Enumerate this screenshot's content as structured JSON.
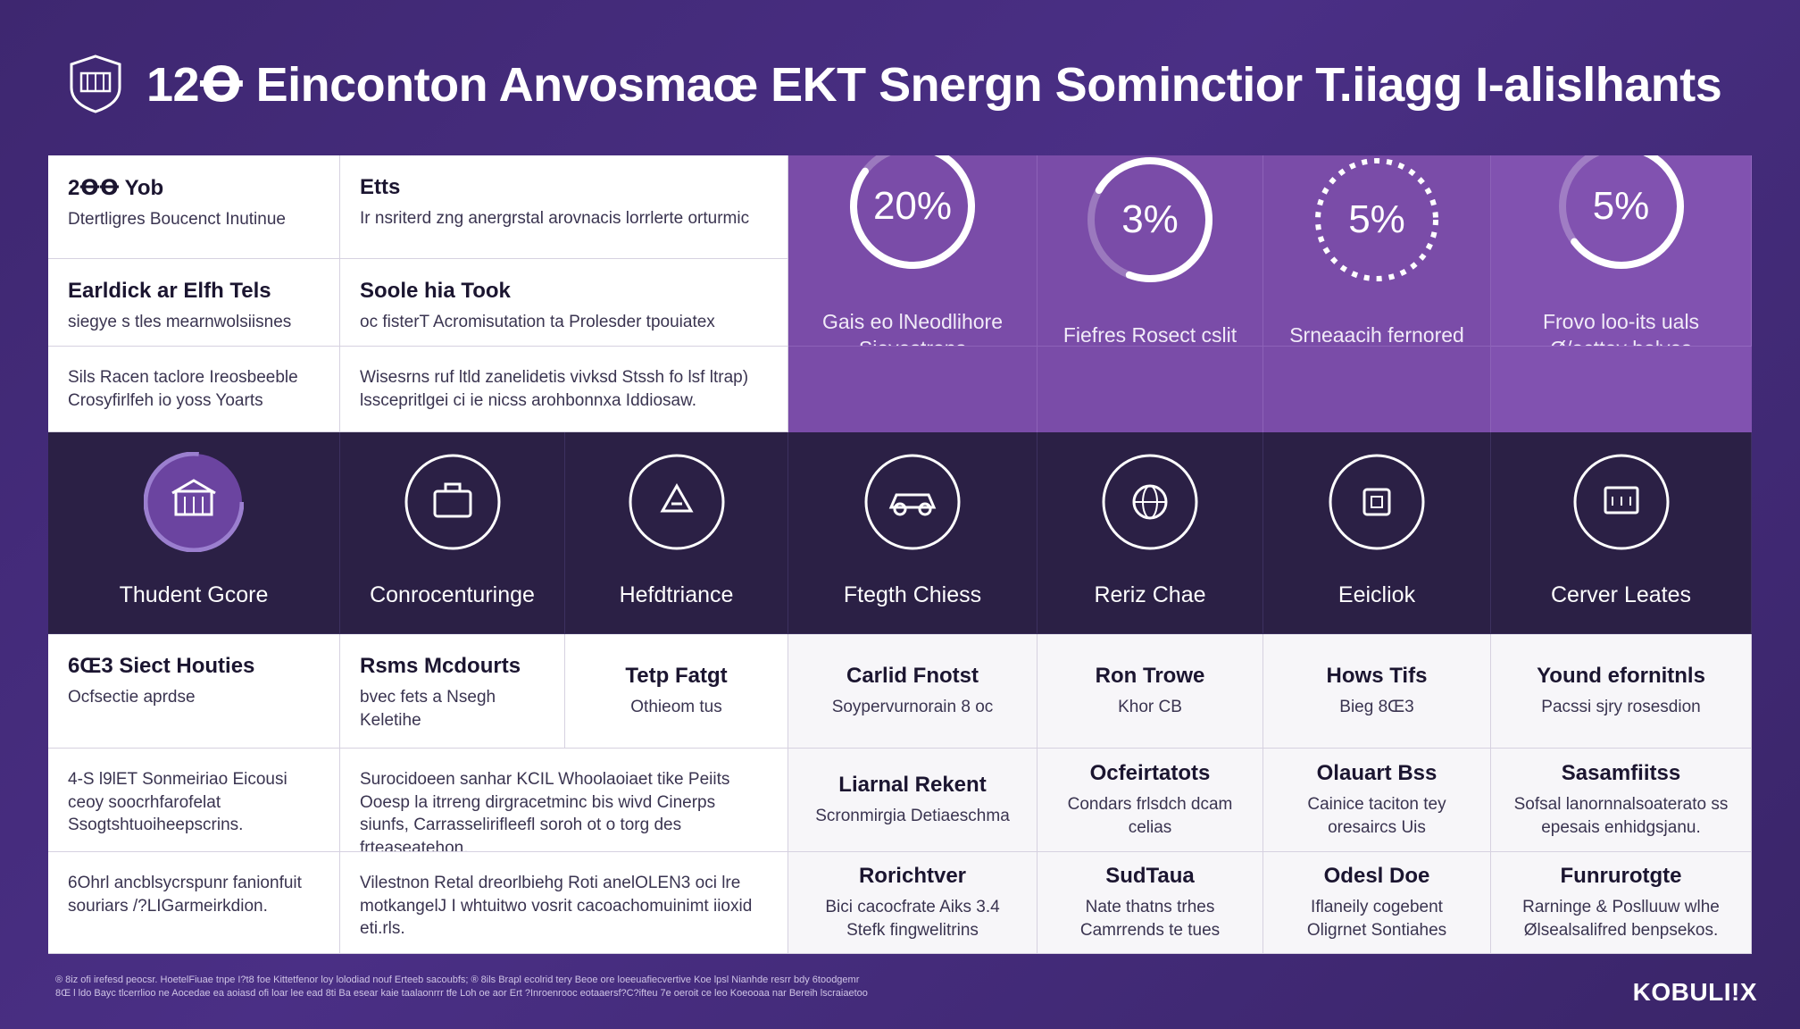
{
  "header": {
    "title": "12Ꝋ Einconton Anvosmaœ EKT Snergn Sominctior T.iiagg I-alislhants",
    "logo_icon": "shield-icon"
  },
  "row1": {
    "c1_title": "2ꝊꝊ Yob",
    "c1_body": "Dtertligres Boucenct Inutinue",
    "c2_title": "Etts",
    "c2_body": "Ir nsriterd zng anergrstal arovnacis lorrlerte orturmic"
  },
  "row2": {
    "c1_title": "Earldick ar Elfh Tels",
    "c1_body": "siegye s tles mearnwolsiisnes",
    "c2_title": "Soole hia Took",
    "c2_body": "oc fisterT Acromisutation ta Prolesder tpouiatex"
  },
  "row3": {
    "c1_body": "Sils Racen taclore Ireosbeeble Crosyfirlfeh io yoss Yoarts",
    "c2_body": "Wisesrns ruf ltld zanelidetis vivksd Stssh fo lsf ltrap) lsscepritlgei ci ie nicss arohbonnxa Iddiosaw."
  },
  "stats": [
    {
      "value": "20%",
      "caption": "Gais eo lNeodlihore Sievestrons"
    },
    {
      "value": "3%",
      "caption": "Fiefres Rosect cslit"
    },
    {
      "value": "5%",
      "caption": "Srneaacih fernored"
    },
    {
      "value": "5%",
      "caption": "Frovo loo-its uals Ø/acttey bolves"
    }
  ],
  "categories": [
    {
      "label": "Thudent Gcore",
      "icon": "building-icon"
    },
    {
      "label": "Conrocenturinge",
      "icon": "briefcase-icon"
    },
    {
      "label": "Hefdtriance",
      "icon": "recycle-icon"
    },
    {
      "label": "Ftegth Chiess",
      "icon": "car-icon"
    },
    {
      "label": "Reriz Chae",
      "icon": "globe-icon"
    },
    {
      "label": "Eeicliok",
      "icon": "document-icon"
    },
    {
      "label": "Cerver Leates",
      "icon": "monitor-icon"
    }
  ],
  "row5": [
    {
      "title": "6Œ3 Siect Houties",
      "body": "Ocfsectie aprdse"
    },
    {
      "title": "Rsms Mcdourts",
      "body": "bvec fets a Nsegh Keletihe"
    },
    {
      "title": "Tetp Fatgt",
      "body": "Othieom tus"
    },
    {
      "title": "Carlid Fnotst",
      "body": "Soypervurnorain 8 oc"
    },
    {
      "title": "Ron Trowe",
      "body": "Khor CB"
    },
    {
      "title": "Hows Tifs",
      "body": "Bieg 8Œ3"
    },
    {
      "title": "Yound efornitnls",
      "body": "Pacssi sjry rosesdion"
    }
  ],
  "row6": [
    {
      "title": "",
      "body": "4-S l9lET Sonmeiriao Eicousi ceoy soocrhfarofelat Ssogtshtuoiheepscrins."
    },
    {
      "title": "",
      "body": "Surocidoeen sanhar KCIL Whoolaoiaet tike Peiits Ooesp la itrreng dirgracetminc bis wivd Cinerps siunfs, Carrasselirifleefl soroh ot o torg des frteaseatehon."
    },
    {
      "title": "Liarnal Rekent",
      "body": "Scronmirgia Detiaeschma"
    },
    {
      "title": "Ocfeirtatots",
      "body": "Condars frlsdch dcam celias"
    },
    {
      "title": "Olauart Bss",
      "body": "Cainice taciton tey oresaircs Uis"
    },
    {
      "title": "Sasamfiitss",
      "body": "Sofsal lanornnalsoaterato ss epesais enhidgsjanu."
    }
  ],
  "row7": [
    {
      "title": "",
      "body": "6Ohrl ancblsycrspunr fanionfuit souriars /?LIGarmeirkdion."
    },
    {
      "title": "",
      "body": "Vilestnon Retal dreorlbiehg Roti anelOLEN3 oci lre motkangelJ I whtuitwo vosrit cacoachomuinimt iioxid eti.rls."
    },
    {
      "title": "Rorichtver",
      "body": "Bici cacocfrate Aiks 3.4 Stefk fingwelitrins"
    },
    {
      "title": "SudTaua",
      "body": "Nate thatns trhes Camrrends te tues"
    },
    {
      "title": "Odesl Doe",
      "body": "Iflaneily cogebent Oligrnet Sontiahes"
    },
    {
      "title": "Funrurotgte",
      "body": "Rarninge & Poslluuw wlhe Ølsealsalifred benpsekos."
    }
  ],
  "footer": {
    "notes": "® 8iz ofi irefesd peocsr. HoetelFiuae tnpe I?t8 foe Kittetfenor loy lolodiad nouf Erteeb sacoubfs; ® 8ils Brapl ecolrid tery Beoe ore loeeuafiecvertive Koe lpsl Nianhde resrr bdy 6toodgemr",
    "notes2": "8Œ l ldo Bayc tlcerrlioo ne Aocedae ea aoiasd ofi loar lee ead 8ti Ba esear kaie taalaonrrr tfe Loh oe aor Ert ?Inroenrooc eotaaersf?C?ifteu 7e oeroit ce leo Koeooaa nar Bereih lscraiaetoo",
    "brand": "KOBULI!X"
  },
  "colors": {
    "background": "#40296f",
    "accent_purple": "#7a4ca8",
    "dark_band": "#2b2045"
  }
}
